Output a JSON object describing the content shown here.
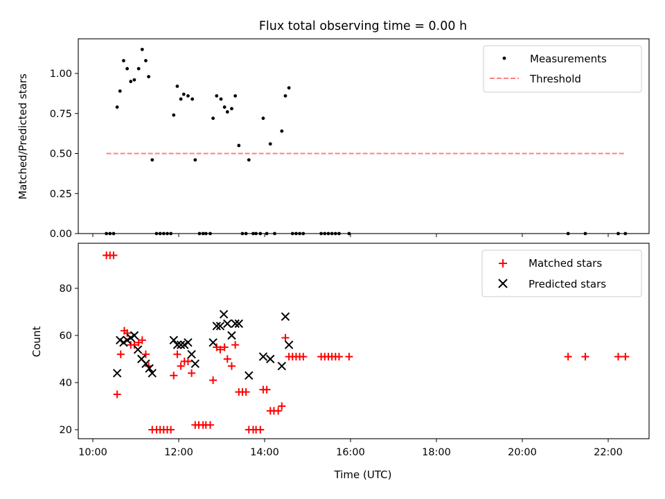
{
  "chart_data": [
    {
      "type": "scatter",
      "title": "Flux total observing time = 0.00 h",
      "xlabel": "",
      "ylabel": "Matched/Predicted stars",
      "xlim": [
        "10:00",
        "23:00"
      ],
      "ylim": [
        0,
        1.2
      ],
      "yticks": [
        "0.00",
        "0.25",
        "0.50",
        "0.75",
        "1.00"
      ],
      "xtick_labels_visible": false,
      "legend_position": "top-right",
      "series": [
        {
          "name": "Measurements",
          "marker": "dot",
          "color": "#000000",
          "points": [
            [
              "10:19",
              0.0
            ],
            [
              "10:24",
              0.0
            ],
            [
              "10:29",
              0.0
            ],
            [
              "10:34",
              0.79
            ],
            [
              "10:38",
              0.89
            ],
            [
              "10:43",
              1.08
            ],
            [
              "10:48",
              1.03
            ],
            [
              "10:53",
              0.95
            ],
            [
              "10:58",
              0.96
            ],
            [
              "11:04",
              1.03
            ],
            [
              "11:09",
              1.15
            ],
            [
              "11:14",
              1.08
            ],
            [
              "11:18",
              0.98
            ],
            [
              "11:23",
              0.46
            ],
            [
              "11:29",
              0.0
            ],
            [
              "11:34",
              0.0
            ],
            [
              "11:39",
              0.0
            ],
            [
              "11:44",
              0.0
            ],
            [
              "11:49",
              0.0
            ],
            [
              "11:53",
              0.74
            ],
            [
              "11:58",
              0.92
            ],
            [
              "12:03",
              0.84
            ],
            [
              "12:07",
              0.87
            ],
            [
              "12:13",
              0.86
            ],
            [
              "12:19",
              0.84
            ],
            [
              "12:23",
              0.46
            ],
            [
              "12:29",
              0.0
            ],
            [
              "12:34",
              0.0
            ],
            [
              "12:38",
              0.0
            ],
            [
              "12:44",
              0.0
            ],
            [
              "12:48",
              0.72
            ],
            [
              "12:53",
              0.86
            ],
            [
              "12:59",
              0.84
            ],
            [
              "13:04",
              0.79
            ],
            [
              "13:08",
              0.76
            ],
            [
              "13:14",
              0.78
            ],
            [
              "13:19",
              0.86
            ],
            [
              "13:24",
              0.55
            ],
            [
              "13:29",
              0.0
            ],
            [
              "13:34",
              0.0
            ],
            [
              "13:38",
              0.46
            ],
            [
              "13:44",
              0.0
            ],
            [
              "13:48",
              0.0
            ],
            [
              "13:54",
              0.0
            ],
            [
              "13:58",
              0.72
            ],
            [
              "14:03",
              0.0
            ],
            [
              "14:08",
              0.56
            ],
            [
              "14:14",
              0.0
            ],
            [
              "14:24",
              0.64
            ],
            [
              "14:29",
              0.86
            ],
            [
              "14:34",
              0.91
            ],
            [
              "14:39",
              0.0
            ],
            [
              "14:44",
              0.0
            ],
            [
              "14:49",
              0.0
            ],
            [
              "14:54",
              0.0
            ],
            [
              "15:19",
              0.0
            ],
            [
              "15:24",
              0.0
            ],
            [
              "15:29",
              0.0
            ],
            [
              "15:34",
              0.0
            ],
            [
              "15:39",
              0.0
            ],
            [
              "15:44",
              0.0
            ],
            [
              "15:58",
              0.0
            ],
            [
              "21:04",
              0.0
            ],
            [
              "21:28",
              0.0
            ],
            [
              "22:14",
              0.0
            ],
            [
              "22:24",
              0.0
            ]
          ]
        },
        {
          "name": "Threshold",
          "style": "dashed-line",
          "color": "#ff7f7f",
          "points": [
            [
              "10:19",
              0.5
            ],
            [
              "22:24",
              0.5
            ]
          ]
        }
      ]
    },
    {
      "type": "scatter",
      "title": "",
      "xlabel": "Time (UTC)",
      "ylabel": "Count",
      "xlim": [
        "10:00",
        "23:00"
      ],
      "ylim": [
        16,
        98
      ],
      "xticks": [
        "10:00",
        "12:00",
        "14:00",
        "16:00",
        "18:00",
        "20:00",
        "22:00"
      ],
      "yticks": [
        "20",
        "40",
        "60",
        "80"
      ],
      "legend_position": "top-right",
      "series": [
        {
          "name": "Matched stars",
          "marker": "plus",
          "color": "#ff0000",
          "points": [
            [
              "10:19",
              94
            ],
            [
              "10:24",
              94
            ],
            [
              "10:29",
              94
            ],
            [
              "10:34",
              35
            ],
            [
              "10:39",
              52
            ],
            [
              "10:44",
              62
            ],
            [
              "10:48",
              61
            ],
            [
              "10:53",
              56
            ],
            [
              "10:58",
              56
            ],
            [
              "11:04",
              57
            ],
            [
              "11:09",
              58
            ],
            [
              "11:14",
              52
            ],
            [
              "11:18",
              47
            ],
            [
              "11:23",
              20
            ],
            [
              "11:29",
              20
            ],
            [
              "11:34",
              20
            ],
            [
              "11:39",
              20
            ],
            [
              "11:44",
              20
            ],
            [
              "11:49",
              20
            ],
            [
              "11:53",
              43
            ],
            [
              "11:58",
              52
            ],
            [
              "12:03",
              47
            ],
            [
              "12:08",
              49
            ],
            [
              "12:13",
              49
            ],
            [
              "12:18",
              44
            ],
            [
              "12:23",
              22
            ],
            [
              "12:28",
              22
            ],
            [
              "12:34",
              22
            ],
            [
              "12:38",
              22
            ],
            [
              "12:44",
              22
            ],
            [
              "12:48",
              41
            ],
            [
              "12:53",
              55
            ],
            [
              "12:58",
              54
            ],
            [
              "13:04",
              55
            ],
            [
              "13:08",
              50
            ],
            [
              "13:14",
              47
            ],
            [
              "13:19",
              56
            ],
            [
              "13:24",
              36
            ],
            [
              "13:29",
              36
            ],
            [
              "13:34",
              36
            ],
            [
              "13:38",
              20
            ],
            [
              "13:44",
              20
            ],
            [
              "13:48",
              20
            ],
            [
              "13:54",
              20
            ],
            [
              "13:58",
              37
            ],
            [
              "14:03",
              37
            ],
            [
              "14:08",
              28
            ],
            [
              "14:13",
              28
            ],
            [
              "14:19",
              28
            ],
            [
              "14:24",
              30
            ],
            [
              "14:29",
              59
            ],
            [
              "14:34",
              51
            ],
            [
              "14:39",
              51
            ],
            [
              "14:44",
              51
            ],
            [
              "14:49",
              51
            ],
            [
              "14:54",
              51
            ],
            [
              "15:19",
              51
            ],
            [
              "15:24",
              51
            ],
            [
              "15:29",
              51
            ],
            [
              "15:34",
              51
            ],
            [
              "15:39",
              51
            ],
            [
              "15:44",
              51
            ],
            [
              "15:58",
              51
            ],
            [
              "21:04",
              51
            ],
            [
              "21:28",
              51
            ],
            [
              "22:14",
              51
            ],
            [
              "22:24",
              51
            ]
          ]
        },
        {
          "name": "Predicted stars",
          "marker": "x",
          "color": "#000000",
          "points": [
            [
              "10:34",
              44
            ],
            [
              "10:38",
              58
            ],
            [
              "10:43",
              57
            ],
            [
              "10:48",
              58
            ],
            [
              "10:53",
              59
            ],
            [
              "10:58",
              60
            ],
            [
              "11:03",
              54
            ],
            [
              "11:08",
              50
            ],
            [
              "11:14",
              48
            ],
            [
              "11:19",
              46
            ],
            [
              "11:23",
              44
            ],
            [
              "11:53",
              58
            ],
            [
              "11:58",
              56
            ],
            [
              "12:03",
              56
            ],
            [
              "12:08",
              56
            ],
            [
              "12:13",
              57
            ],
            [
              "12:18",
              52
            ],
            [
              "12:23",
              48
            ],
            [
              "12:48",
              57
            ],
            [
              "12:53",
              64
            ],
            [
              "12:58",
              64
            ],
            [
              "13:03",
              69
            ],
            [
              "13:08",
              65
            ],
            [
              "13:14",
              60
            ],
            [
              "13:19",
              65
            ],
            [
              "13:24",
              65
            ],
            [
              "13:38",
              43
            ],
            [
              "13:58",
              51
            ],
            [
              "14:08",
              50
            ],
            [
              "14:24",
              47
            ],
            [
              "14:29",
              68
            ],
            [
              "14:34",
              56
            ]
          ]
        }
      ]
    }
  ]
}
